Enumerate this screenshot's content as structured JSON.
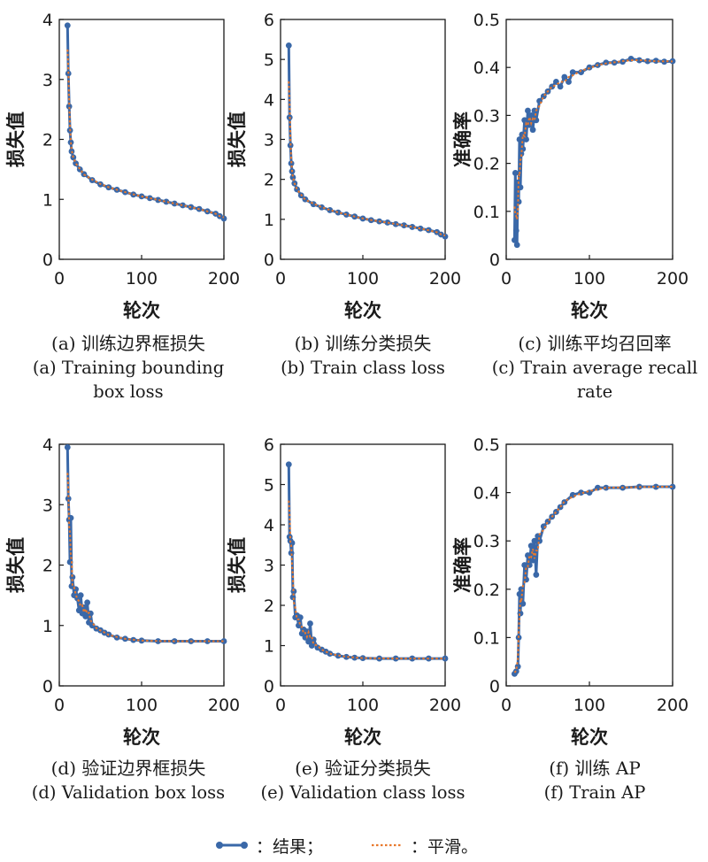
{
  "figure": {
    "panels": [
      {
        "id": "a",
        "caption_cn": "(a) 训练边界框损失",
        "caption_en": [
          "(a) Training bounding",
          "box loss"
        ],
        "chart_data": {
          "type": "line",
          "title": "训练边界框损失",
          "xlabel": "轮次",
          "ylabel": "损失值",
          "xlim": [
            0,
            200
          ],
          "ylim": [
            0,
            4
          ],
          "xticks": [
            0,
            100,
            200
          ],
          "yticks": [
            0,
            1,
            2,
            3,
            4
          ],
          "xtick_labels": [
            "0",
            "100",
            "200"
          ],
          "ytick_labels": [
            "0",
            "1",
            "2",
            "3",
            "4"
          ],
          "series": [
            {
              "name": "结果",
              "x": [
                10,
                11,
                12,
                13,
                14,
                15,
                17,
                20,
                25,
                30,
                40,
                50,
                60,
                70,
                80,
                90,
                100,
                110,
                120,
                130,
                140,
                150,
                160,
                170,
                180,
                190,
                195,
                200
              ],
              "y": [
                3.9,
                3.1,
                2.55,
                2.15,
                1.95,
                1.8,
                1.7,
                1.6,
                1.5,
                1.42,
                1.32,
                1.25,
                1.2,
                1.16,
                1.12,
                1.08,
                1.05,
                1.02,
                0.99,
                0.96,
                0.93,
                0.9,
                0.87,
                0.84,
                0.8,
                0.76,
                0.72,
                0.68
              ]
            }
          ]
        }
      },
      {
        "id": "b",
        "caption_cn": "(b) 训练分类损失",
        "caption_en": [
          "(b) Train class loss"
        ],
        "chart_data": {
          "type": "line",
          "title": "训练分类损失",
          "xlabel": "轮次",
          "ylabel": "损失值",
          "xlim": [
            0,
            200
          ],
          "ylim": [
            0,
            6
          ],
          "xticks": [
            0,
            100,
            200
          ],
          "yticks": [
            0,
            1,
            2,
            3,
            4,
            5,
            6
          ],
          "xtick_labels": [
            "0",
            "100",
            "200"
          ],
          "ytick_labels": [
            "0",
            "1",
            "2",
            "3",
            "4",
            "5",
            "6"
          ],
          "series": [
            {
              "name": "结果",
              "x": [
                10,
                11,
                12,
                13,
                14,
                15,
                17,
                20,
                25,
                30,
                40,
                50,
                60,
                70,
                80,
                90,
                100,
                110,
                120,
                130,
                140,
                150,
                160,
                170,
                180,
                190,
                195,
                200
              ],
              "y": [
                5.35,
                3.55,
                2.85,
                2.4,
                2.2,
                2.05,
                1.9,
                1.75,
                1.6,
                1.5,
                1.38,
                1.3,
                1.23,
                1.17,
                1.12,
                1.07,
                1.02,
                0.98,
                0.95,
                0.92,
                0.88,
                0.85,
                0.81,
                0.77,
                0.73,
                0.68,
                0.62,
                0.57
              ]
            }
          ]
        }
      },
      {
        "id": "c",
        "caption_cn": "(c) 训练平均召回率",
        "caption_en": [
          "(c) Train average recall",
          "rate"
        ],
        "chart_data": {
          "type": "line",
          "title": "训练平均召回率",
          "xlabel": "轮次",
          "ylabel": "准确率",
          "xlim": [
            0,
            200
          ],
          "ylim": [
            0,
            0.5
          ],
          "xticks": [
            0,
            100,
            200
          ],
          "yticks": [
            0,
            0.1,
            0.2,
            0.3,
            0.4,
            0.5
          ],
          "xtick_labels": [
            "0",
            "100",
            "200"
          ],
          "ytick_labels": [
            "0",
            "0.1",
            "0.2",
            "0.3",
            "0.4",
            "0.5"
          ],
          "series": [
            {
              "name": "结果",
              "x": [
                10,
                11,
                12,
                13,
                14,
                15,
                16,
                17,
                18,
                19,
                20,
                22,
                24,
                26,
                28,
                30,
                32,
                34,
                36,
                40,
                45,
                50,
                55,
                60,
                65,
                70,
                75,
                80,
                90,
                100,
                110,
                120,
                130,
                140,
                150,
                160,
                170,
                180,
                190,
                200
              ],
              "y": [
                0.04,
                0.18,
                0.06,
                0.03,
                0.16,
                0.12,
                0.25,
                0.15,
                0.22,
                0.26,
                0.23,
                0.29,
                0.25,
                0.31,
                0.28,
                0.3,
                0.27,
                0.31,
                0.29,
                0.33,
                0.34,
                0.35,
                0.36,
                0.37,
                0.36,
                0.38,
                0.37,
                0.39,
                0.39,
                0.4,
                0.405,
                0.41,
                0.41,
                0.412,
                0.418,
                0.415,
                0.413,
                0.414,
                0.412,
                0.413
              ]
            }
          ]
        }
      },
      {
        "id": "d",
        "caption_cn": "(d) 验证边界框损失",
        "caption_en": [
          "(d) Validation box loss"
        ],
        "chart_data": {
          "type": "line",
          "title": "验证边界框损失",
          "xlabel": "轮次",
          "ylabel": "损失值",
          "xlim": [
            0,
            200
          ],
          "ylim": [
            0,
            4
          ],
          "xticks": [
            0,
            100,
            200
          ],
          "yticks": [
            0,
            1,
            2,
            3,
            4
          ],
          "xtick_labels": [
            "0",
            "100",
            "200"
          ],
          "ytick_labels": [
            "0",
            "1",
            "2",
            "3",
            "4"
          ],
          "series": [
            {
              "name": "结果",
              "x": [
                10,
                11,
                12,
                13,
                14,
                15,
                16,
                18,
                20,
                22,
                24,
                26,
                28,
                30,
                32,
                34,
                36,
                38,
                40,
                45,
                50,
                55,
                60,
                70,
                80,
                90,
                100,
                120,
                140,
                160,
                180,
                200
              ],
              "y": [
                3.95,
                3.1,
                2.75,
                2.05,
                2.78,
                1.65,
                1.8,
                1.5,
                1.6,
                1.45,
                1.25,
                1.5,
                1.2,
                1.3,
                1.15,
                1.38,
                1.05,
                1.2,
                1.0,
                0.95,
                0.92,
                0.88,
                0.85,
                0.8,
                0.78,
                0.76,
                0.75,
                0.74,
                0.74,
                0.74,
                0.74,
                0.74
              ]
            }
          ]
        }
      },
      {
        "id": "e",
        "caption_cn": "(e) 验证分类损失",
        "caption_en": [
          "(e) Validation class loss"
        ],
        "chart_data": {
          "type": "line",
          "title": "验证分类损失",
          "xlabel": "轮次",
          "ylabel": "损失值",
          "xlim": [
            0,
            200
          ],
          "ylim": [
            0,
            6
          ],
          "xticks": [
            0,
            100,
            200
          ],
          "yticks": [
            0,
            1,
            2,
            3,
            4,
            5,
            6
          ],
          "xtick_labels": [
            "0",
            "100",
            "200"
          ],
          "ytick_labels": [
            "0",
            "1",
            "2",
            "3",
            "4",
            "5",
            "6"
          ],
          "series": [
            {
              "name": "结果",
              "x": [
                10,
                11,
                12,
                13,
                14,
                15,
                16,
                18,
                20,
                22,
                24,
                26,
                28,
                30,
                32,
                34,
                36,
                38,
                40,
                45,
                50,
                55,
                60,
                70,
                80,
                90,
                100,
                120,
                140,
                160,
                180,
                200
              ],
              "y": [
                5.5,
                3.7,
                3.6,
                3.3,
                3.55,
                2.2,
                2.35,
                1.7,
                1.75,
                1.5,
                1.7,
                1.3,
                1.4,
                1.2,
                1.35,
                1.1,
                1.55,
                1.0,
                1.15,
                0.95,
                0.9,
                0.85,
                0.8,
                0.75,
                0.72,
                0.7,
                0.69,
                0.68,
                0.68,
                0.68,
                0.68,
                0.68
              ]
            }
          ]
        }
      },
      {
        "id": "f",
        "caption_cn": "(f) 训练 AP",
        "caption_en": [
          "(f) Train AP"
        ],
        "chart_data": {
          "type": "line",
          "title": "训练 AP",
          "xlabel": "轮次",
          "ylabel": "准确率",
          "xlim": [
            0,
            200
          ],
          "ylim": [
            0,
            0.5
          ],
          "xticks": [
            0,
            100,
            200
          ],
          "yticks": [
            0,
            0.1,
            0.2,
            0.3,
            0.4,
            0.5
          ],
          "xtick_labels": [
            "0",
            "100",
            "200"
          ],
          "ytick_labels": [
            "0",
            "0.1",
            "0.2",
            "0.3",
            "0.4",
            "0.5"
          ],
          "series": [
            {
              "name": "结果",
              "x": [
                10,
                12,
                14,
                15,
                16,
                17,
                18,
                20,
                22,
                24,
                26,
                28,
                30,
                32,
                34,
                36,
                38,
                40,
                45,
                50,
                55,
                60,
                65,
                70,
                80,
                90,
                100,
                110,
                120,
                140,
                160,
                180,
                200
              ],
              "y": [
                0.025,
                0.03,
                0.04,
                0.1,
                0.19,
                0.15,
                0.2,
                0.17,
                0.25,
                0.22,
                0.27,
                0.25,
                0.29,
                0.26,
                0.3,
                0.23,
                0.31,
                0.3,
                0.33,
                0.34,
                0.35,
                0.36,
                0.37,
                0.38,
                0.395,
                0.4,
                0.4,
                0.41,
                0.41,
                0.41,
                0.412,
                0.412,
                0.412
              ]
            }
          ]
        }
      }
    ]
  },
  "legend": {
    "result_label": "：结果；",
    "smooth_label": "：平滑。",
    "result_color": "#3a68a8",
    "smooth_color": "#e8782c"
  }
}
